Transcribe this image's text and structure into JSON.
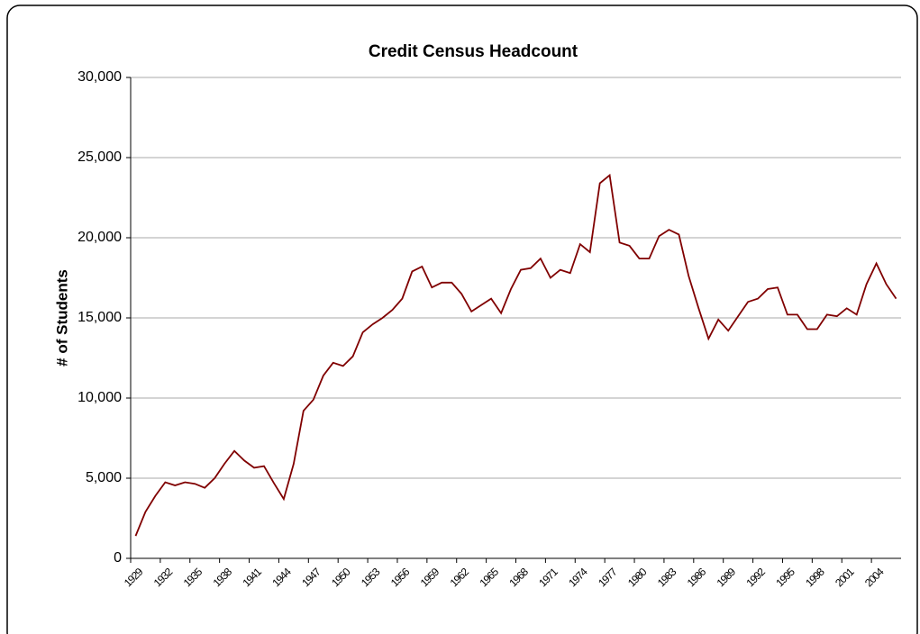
{
  "chart_data": {
    "type": "line",
    "title": "Credit Census Headcount",
    "y_label": "# of Students",
    "categories": [
      "1929",
      null,
      null,
      "1932",
      null,
      null,
      "1935",
      null,
      null,
      "1938",
      null,
      null,
      "1941",
      null,
      null,
      "1944",
      null,
      null,
      "1947",
      null,
      null,
      "1950",
      null,
      null,
      "1953",
      null,
      null,
      "1956",
      null,
      null,
      "1959",
      null,
      null,
      "1962",
      null,
      null,
      "1965",
      null,
      null,
      "1968",
      null,
      null,
      "1971",
      null,
      null,
      "1974",
      null,
      null,
      "1977",
      null,
      null,
      "1980",
      null,
      null,
      "1983",
      null,
      null,
      "1986",
      null,
      null,
      "1989",
      null,
      null,
      "1992",
      null,
      null,
      "1995",
      null,
      null,
      "1998",
      null,
      null,
      "2001",
      null,
      null,
      "2004",
      null,
      null
    ],
    "series": [
      {
        "name": "Headcount",
        "color": "#800000",
        "values": [
          1400,
          2900,
          3900,
          4750,
          4550,
          4750,
          4650,
          4400,
          5000,
          5900,
          6700,
          6100,
          5650,
          5750,
          4700,
          3700,
          5900,
          9200,
          9900,
          11400,
          12200,
          12000,
          12600,
          14100,
          14600,
          15000,
          15500,
          16200,
          17900,
          18200,
          16900,
          17200,
          17200,
          16500,
          15400,
          15800,
          16200,
          15300,
          16800,
          18000,
          18100,
          18700,
          17500,
          18000,
          17800,
          19600,
          19100,
          23400,
          23900,
          19700,
          19500,
          18700,
          18700,
          20100,
          20500,
          20200,
          17600,
          15600,
          13700,
          14900,
          14200,
          15100,
          16000,
          16200,
          16800,
          16900,
          15200,
          15200,
          14300,
          14300,
          15200,
          15100,
          15600,
          15200,
          17100,
          18400,
          17100,
          16200
        ]
      }
    ],
    "ylim": [
      0,
      30000
    ],
    "yticks": [
      {
        "value": 0,
        "label": "0"
      },
      {
        "value": 5000,
        "label": "5,000"
      },
      {
        "value": 10000,
        "label": "10,000"
      },
      {
        "value": 15000,
        "label": "15,000"
      },
      {
        "value": 20000,
        "label": "20,000"
      },
      {
        "value": 25000,
        "label": "25,000"
      },
      {
        "value": 30000,
        "label": "30,000"
      }
    ],
    "grid": true
  }
}
